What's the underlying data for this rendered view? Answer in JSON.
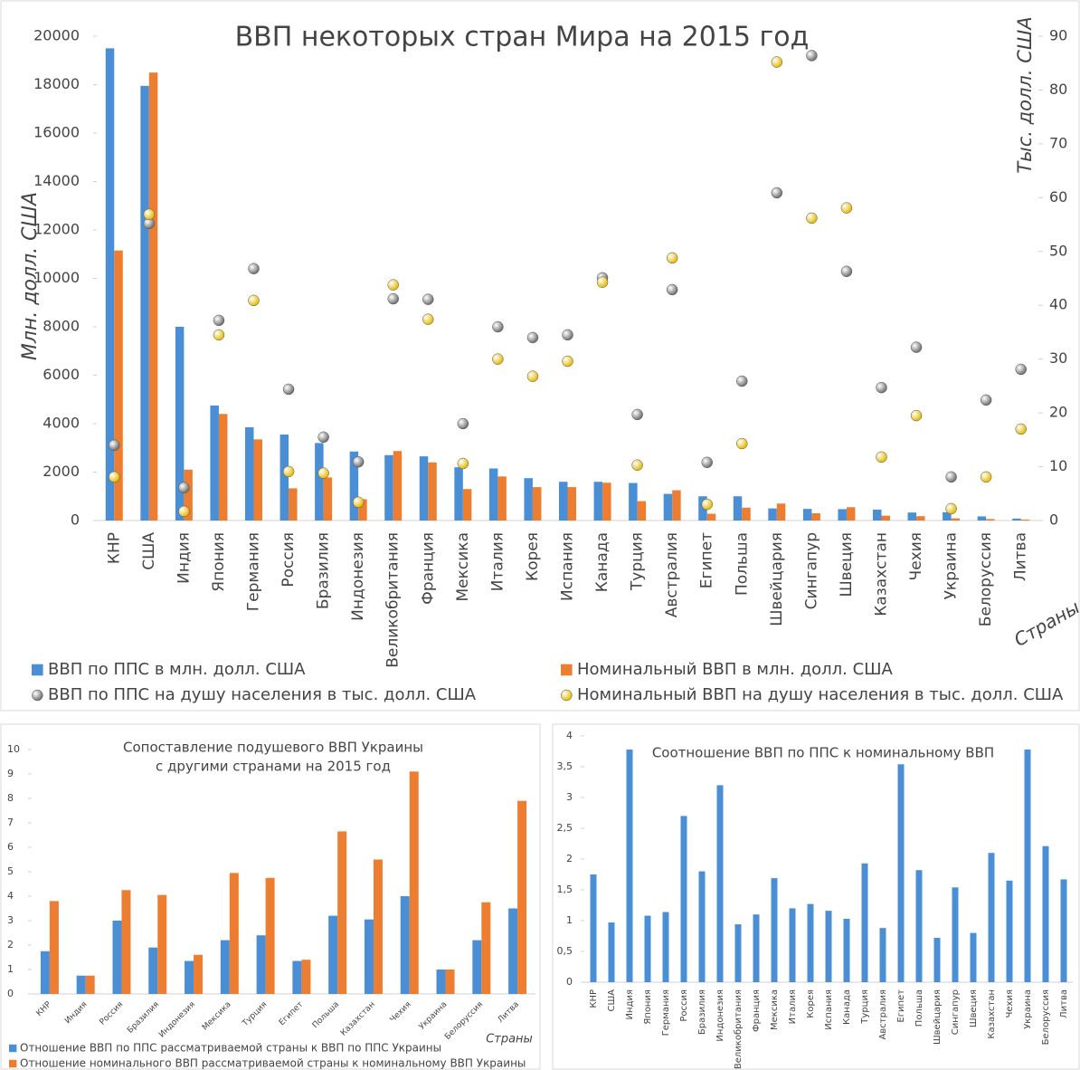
{
  "chart_data": [
    {
      "type": "bar",
      "title": "ВВП некоторых стран Мира на 2015 год",
      "y_label": "Млн. долл. США",
      "y2_label": "Тыс. долл. США",
      "x_label": "Страны",
      "categories": [
        "КНР",
        "США",
        "Индия",
        "Япония",
        "Германия",
        "Россия",
        "Бразилия",
        "Индонезия",
        "Великобритания",
        "Франция",
        "Мексика",
        "Италия",
        "Корея",
        "Испания",
        "Канада",
        "Турция",
        "Австралия",
        "Египет",
        "Польша",
        "Швейцария",
        "Сингапур",
        "Швеция",
        "Казахстан",
        "Чехия",
        "Украина",
        "Белоруссия",
        "Литва"
      ],
      "series": [
        {
          "name": "ВВП по ППС в млн. долл. США",
          "type": "bar",
          "color": "#4a8fd6",
          "values": [
            19500,
            17950,
            8000,
            4750,
            3850,
            3550,
            3200,
            2850,
            2700,
            2650,
            2200,
            2150,
            1750,
            1600,
            1600,
            1550,
            1100,
            1000,
            1000,
            500,
            480,
            470,
            450,
            330,
            340,
            170,
            80
          ]
        },
        {
          "name": "Номинальный ВВП в млн. долл. США",
          "type": "bar",
          "color": "#ed7d31",
          "values": [
            11150,
            18500,
            2100,
            4400,
            3350,
            1330,
            1780,
            880,
            2870,
            2400,
            1300,
            1820,
            1380,
            1380,
            1560,
            800,
            1250,
            280,
            530,
            700,
            300,
            550,
            200,
            180,
            90,
            60,
            40
          ]
        },
        {
          "name": "ВВП по ППС на душу населения в тыс. долл. США",
          "type": "scatter",
          "axis": "y2",
          "color": "#6e6e6e",
          "values": [
            14,
            55.2,
            6.1,
            37.2,
            46.8,
            24.4,
            15.5,
            10.9,
            41.2,
            41.1,
            18,
            36,
            34,
            34.5,
            45.1,
            19.7,
            42.9,
            10.8,
            25.9,
            60.9,
            86.4,
            46.3,
            24.7,
            32.2,
            8.1,
            22.4,
            28.1
          ]
        },
        {
          "name": "Номинальный ВВП на душу населения в тыс. долл. США",
          "type": "scatter",
          "axis": "y2",
          "color": "#e6b800",
          "values": [
            8.1,
            56.9,
            1.7,
            34.5,
            40.9,
            9.1,
            8.8,
            3.4,
            43.8,
            37.4,
            10.6,
            30,
            26.8,
            29.6,
            44.3,
            10.3,
            48.8,
            3.0,
            14.3,
            85.2,
            56.2,
            58.1,
            11.8,
            19.5,
            2.2,
            8.1,
            17
          ]
        }
      ],
      "ylim": [
        0,
        20000
      ],
      "yticks": [
        0,
        2000,
        4000,
        6000,
        8000,
        10000,
        12000,
        14000,
        16000,
        18000,
        20000
      ],
      "y2lim": [
        0,
        90
      ],
      "y2ticks": [
        0,
        10,
        20,
        30,
        40,
        50,
        60,
        70,
        80,
        90
      ],
      "grid": false,
      "legend": "bottom"
    },
    {
      "type": "bar",
      "title": [
        "Сопоставление подушевого ВВП Украины",
        "с другими странами на 2015 год"
      ],
      "x_label": "Страны",
      "categories": [
        "КНР",
        "Индия",
        "Россия",
        "Бразилия",
        "Индонезия",
        "Мексика",
        "Турция",
        "Египет",
        "Польша",
        "Казахстан",
        "Чехия",
        "Украина",
        "Белоруссия",
        "Литва"
      ],
      "series": [
        {
          "name": "Отношение ВВП по ППС рассматриваемой страны к ВВП по ППС Украины",
          "type": "bar",
          "color": "#4a8fd6",
          "values": [
            1.75,
            0.75,
            3.0,
            1.9,
            1.35,
            2.2,
            2.4,
            1.35,
            3.2,
            3.05,
            4.0,
            1.0,
            2.2,
            3.5
          ]
        },
        {
          "name": "Отношение номинального ВВП рассматриваемой страны к номинальному ВВП Украины",
          "type": "bar",
          "color": "#ed7d31",
          "values": [
            3.8,
            0.75,
            4.25,
            4.05,
            1.6,
            4.95,
            4.75,
            1.4,
            6.65,
            5.5,
            9.1,
            1.0,
            3.75,
            7.9
          ]
        }
      ],
      "ylim": [
        0,
        10
      ],
      "yticks": [
        0,
        1,
        2,
        3,
        4,
        5,
        6,
        7,
        8,
        9,
        10
      ],
      "grid": false,
      "legend": "bottom"
    },
    {
      "type": "bar",
      "title": "Соотношение ВВП по ППС к номинальному ВВП",
      "categories": [
        "КНР",
        "США",
        "Индия",
        "Япония",
        "Германия",
        "Россия",
        "Бразилия",
        "Индонезия",
        "Великобритания",
        "Франция",
        "Мексика",
        "Италия",
        "Корея",
        "Испания",
        "Канада",
        "Турция",
        "Австралия",
        "Египет",
        "Польша",
        "Швейцария",
        "Сингапур",
        "Швеция",
        "Казахстан",
        "Чехия",
        "Украина",
        "Белоруссия",
        "Литва"
      ],
      "values": [
        1.75,
        0.97,
        3.78,
        1.08,
        1.14,
        2.7,
        1.8,
        3.2,
        0.94,
        1.1,
        1.69,
        1.2,
        1.27,
        1.16,
        1.03,
        1.93,
        0.88,
        3.54,
        1.82,
        0.72,
        1.54,
        0.8,
        2.1,
        1.65,
        3.78,
        2.21,
        1.67
      ],
      "color": "#4a8fd6",
      "ylim": [
        0,
        4
      ],
      "yticks": [
        0,
        {
          "value": 0.5,
          "label": "0,5"
        },
        1,
        {
          "value": 1.5,
          "label": "1,5"
        },
        2,
        {
          "value": 2.5,
          "label": "2,5"
        },
        3,
        {
          "value": 3.5,
          "label": "3,5"
        },
        4
      ],
      "grid": false
    }
  ]
}
